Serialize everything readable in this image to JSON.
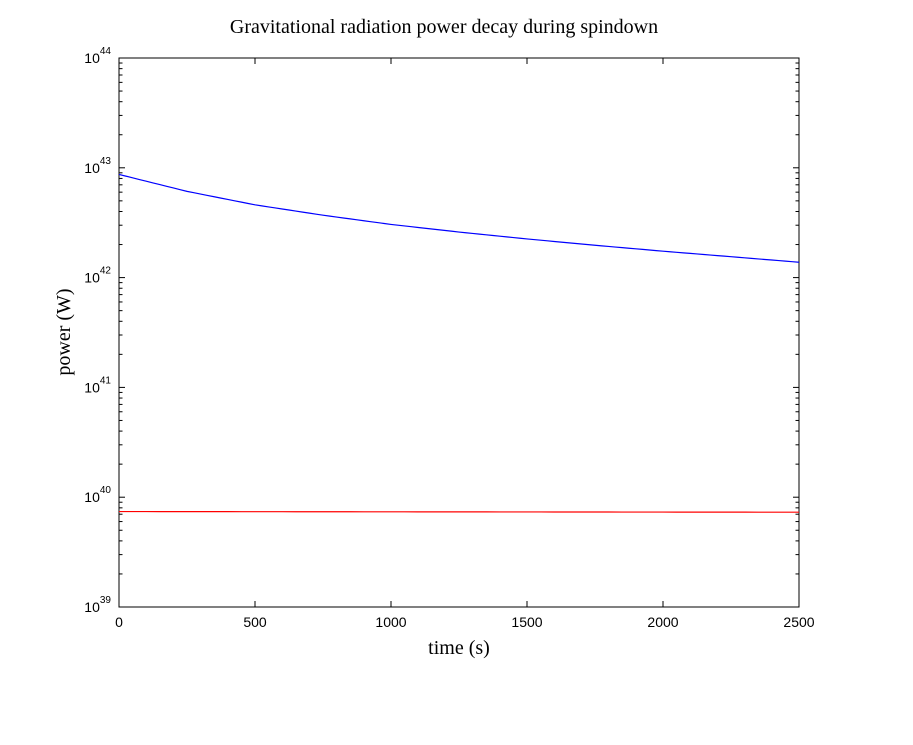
{
  "chart_data": {
    "type": "line",
    "title": "Gravitational radiation power decay during spindown",
    "xlabel": "time (s)",
    "ylabel": "power (W)",
    "xlim": [
      0,
      2500
    ],
    "ylim": [
      1e+39,
      1e+44
    ],
    "yscale": "log",
    "grid": false,
    "xticks": [
      0,
      500,
      1000,
      1500,
      2000,
      2500
    ],
    "ytick_base": "10",
    "ytick_exponents": [
      "39",
      "40",
      "41",
      "42",
      "43",
      "44"
    ],
    "series": [
      {
        "color": "#0000ff",
        "x": [
          0,
          250,
          500,
          750,
          1000,
          1250,
          1500,
          1750,
          2000,
          2250,
          2500
        ],
        "y": [
          8.7e+42,
          6.1e+42,
          4.6e+42,
          3.7e+42,
          3.05e+42,
          2.6e+42,
          2.25e+42,
          1.97e+42,
          1.74e+42,
          1.55e+42,
          1.38e+42
        ]
      },
      {
        "color": "#ff0000",
        "x": [
          0,
          500,
          1000,
          1500,
          2000,
          2500
        ],
        "y": [
          7.4e+39,
          7.38e+39,
          7.36e+39,
          7.34e+39,
          7.32e+39,
          7.3e+39
        ]
      }
    ]
  }
}
